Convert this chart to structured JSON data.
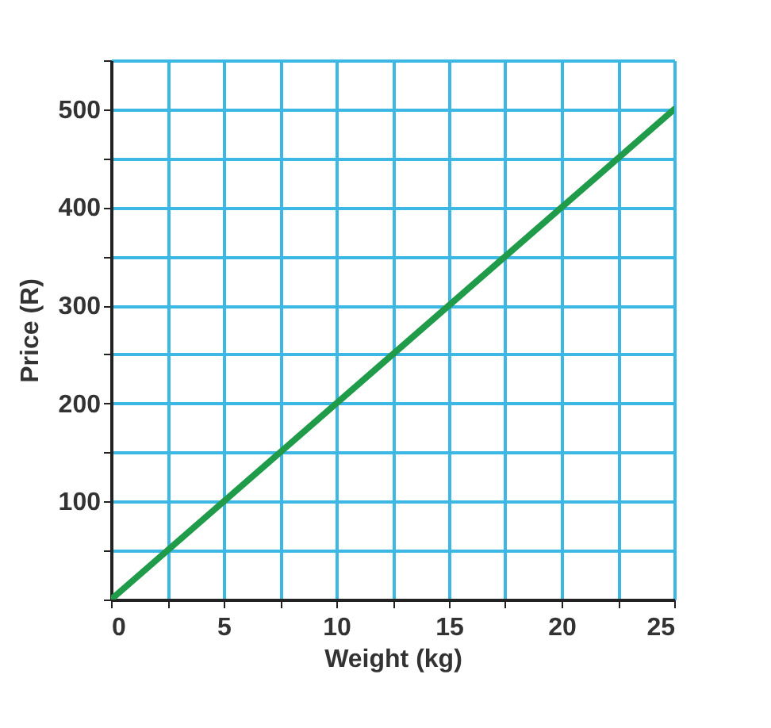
{
  "chart_data": {
    "type": "line",
    "xlabel": "Weight (kg)",
    "ylabel": "Price (R)",
    "x": [
      0,
      25
    ],
    "series": [
      {
        "color": "#1f9b4a",
        "values": [
          0,
          500
        ]
      }
    ],
    "xlim": [
      0,
      25
    ],
    "ylim": [
      0,
      550
    ],
    "xticks": [
      0,
      {
        "value": 2.5,
        "label": null
      },
      5,
      {
        "value": 7.5,
        "label": null
      },
      10,
      {
        "value": 12.5,
        "label": null
      },
      15,
      {
        "value": 17.5,
        "label": null
      },
      20,
      {
        "value": 22.5,
        "label": null
      },
      25
    ],
    "yticks": [
      {
        "value": 0,
        "label": null
      },
      {
        "value": 50,
        "label": null
      },
      100,
      {
        "value": 150,
        "label": null
      },
      200,
      {
        "value": 250,
        "label": null
      },
      300,
      {
        "value": 350,
        "label": null
      },
      400,
      {
        "value": 450,
        "label": null
      },
      500,
      {
        "value": 550,
        "label": null
      }
    ],
    "grid": true,
    "marker": "none",
    "line_style": "solid"
  }
}
